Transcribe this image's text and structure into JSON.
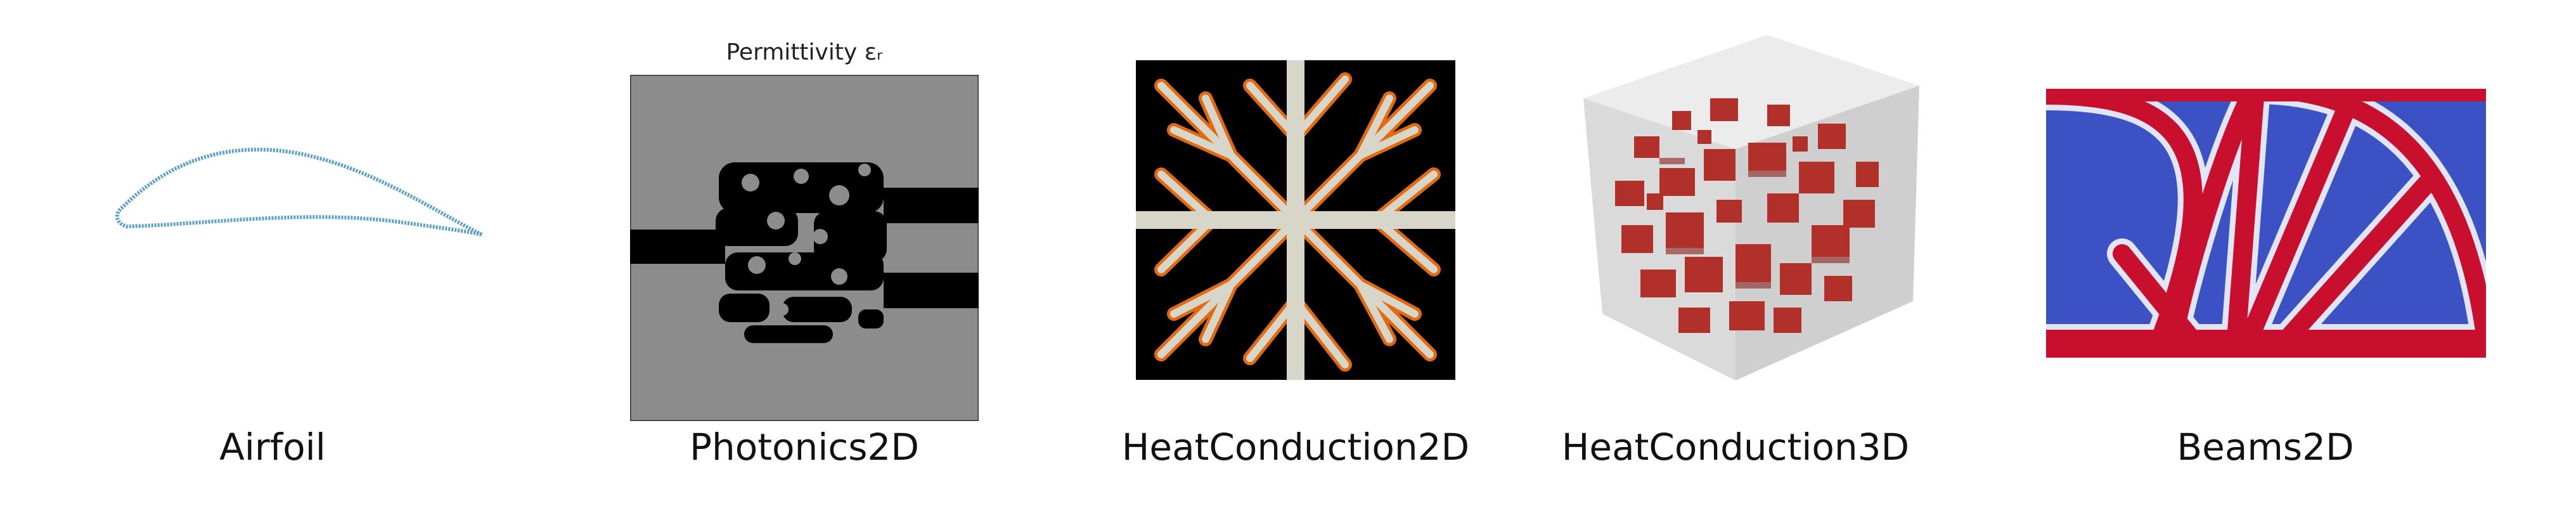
{
  "panels": [
    {
      "id": "airfoil",
      "label": "Airfoil"
    },
    {
      "id": "photonics2d",
      "label": "Photonics2D",
      "plot_title": "Permittivity εᵣ"
    },
    {
      "id": "heatconduction2d",
      "label": "HeatConduction2D"
    },
    {
      "id": "heatconduction3d",
      "label": "HeatConduction3D"
    },
    {
      "id": "beams2d",
      "label": "Beams2D"
    }
  ],
  "colors": {
    "airfoil_line": "#5a9fc9",
    "photonics_bg": "#8c8c8c",
    "photonics_material": "#000000",
    "heat_bg": "#000000",
    "heat_channel": "#d8d6c8",
    "heat_edge": "#e26a10",
    "cube_face": "#dcdcdc",
    "cube_solid": "#b2302a",
    "beam_void": "#3b51c4",
    "beam_solid": "#c8102e"
  }
}
